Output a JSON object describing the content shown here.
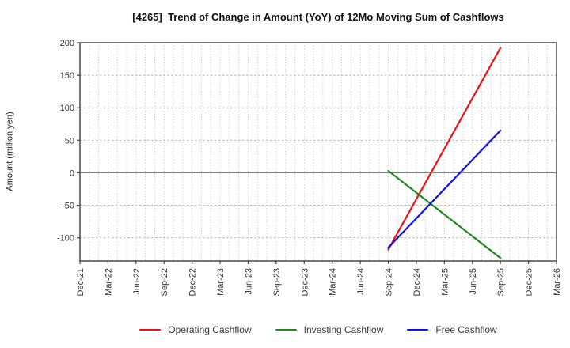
{
  "chart_data": {
    "type": "line",
    "title": "[4265]  Trend of Change in Amount (YoY) of 12Mo Moving Sum of Cashflows",
    "xlabel": "",
    "ylabel": "Amount (million yen)",
    "xlim": [
      "Dec-21",
      "Mar-26"
    ],
    "ylim": [
      -135.6,
      200
    ],
    "yticks": [
      200,
      150,
      100,
      50,
      0,
      -50,
      -100
    ],
    "x_tick_labels": [
      "Dec-21",
      "Mar-22",
      "Jun-22",
      "Sep-22",
      "Dec-22",
      "Mar-23",
      "Jun-23",
      "Sep-23",
      "Dec-23",
      "Mar-24",
      "Jun-24",
      "Sep-24",
      "Dec-24",
      "Mar-25",
      "Jun-25",
      "Sep-25",
      "Dec-25",
      "Mar-26"
    ],
    "x_tick_rotation_deg": 90,
    "grid": {
      "vertical": "monthly, dotted",
      "horizontal": "every 50 units, dotted",
      "zero_line": "solid"
    },
    "legend_position": "bottom",
    "series": [
      {
        "name": "Operating Cashflow",
        "color": "#ee1111",
        "points": [
          {
            "date": "Sep-24",
            "value": -118
          },
          {
            "date": "Sep-25",
            "value": 192
          }
        ]
      },
      {
        "name": "Investing Cashflow",
        "color": "#1f8b1f",
        "points": [
          {
            "date": "Sep-24",
            "value": 3
          },
          {
            "date": "Sep-25",
            "value": -131
          }
        ]
      },
      {
        "name": "Free Cashflow",
        "color": "#0f0fee",
        "points": [
          {
            "date": "Sep-24",
            "value": -115
          },
          {
            "date": "Sep-25",
            "value": 65
          }
        ]
      }
    ],
    "colors": {
      "grid": "#b0b0b0",
      "zero_line": "#808080",
      "spine": "#3c3c3c",
      "tick_label": "#333333",
      "title": "#111111",
      "legend_text": "#3a3a3a"
    }
  }
}
